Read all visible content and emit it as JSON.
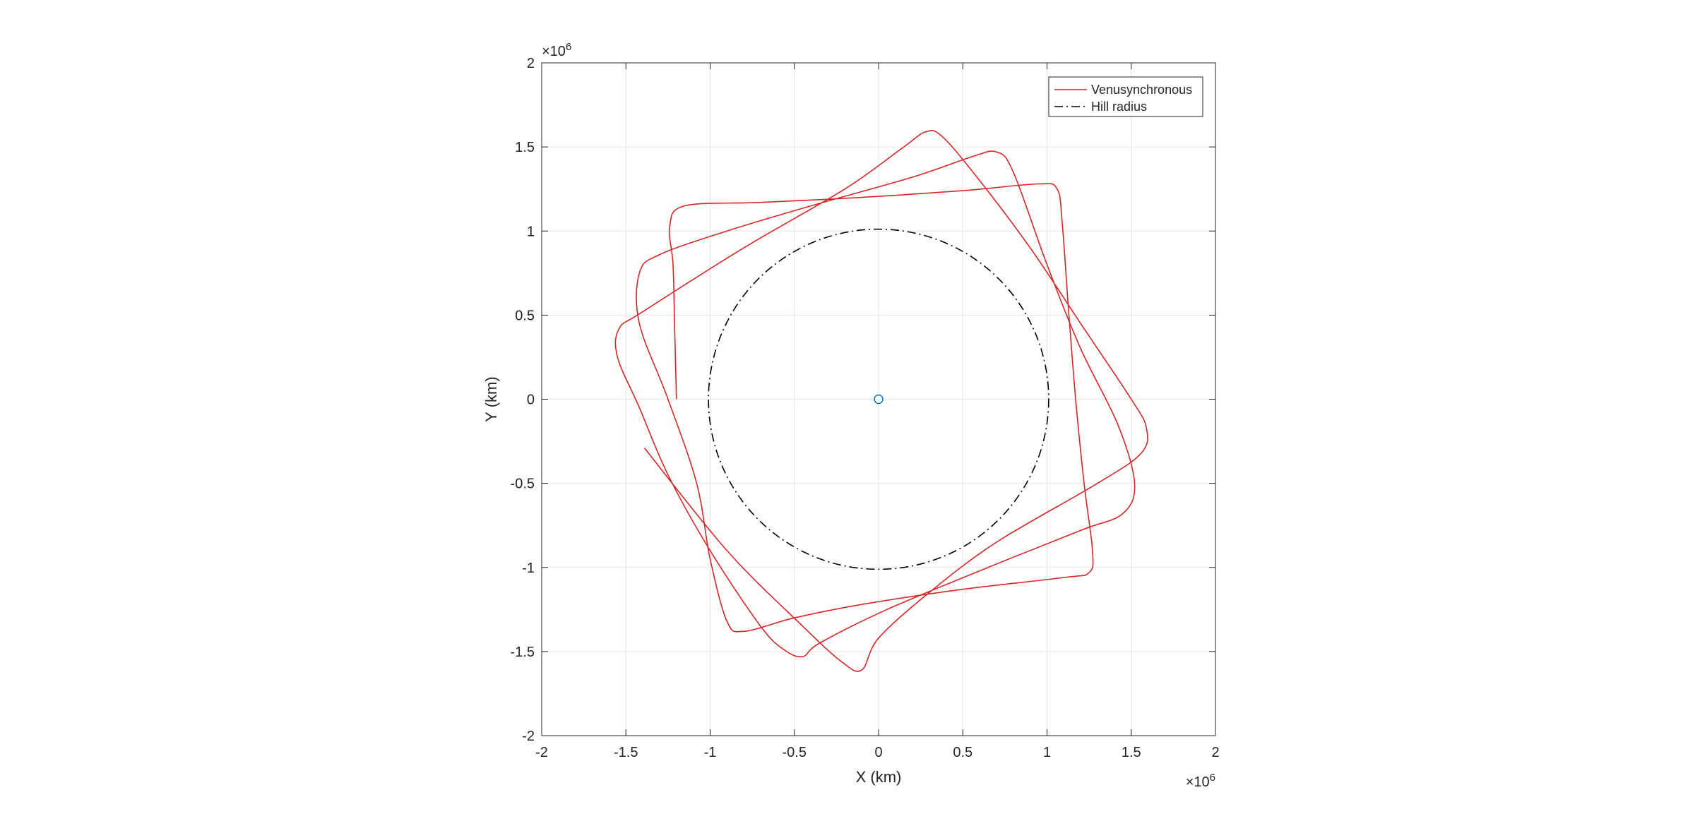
{
  "chart_data": {
    "type": "line",
    "xlabel": "X (km)",
    "ylabel": "Y (km)",
    "xlim": [
      -2000000,
      2000000
    ],
    "ylim": [
      -2000000,
      2000000
    ],
    "xticks": [
      -2000000,
      -1500000,
      -1000000,
      -500000,
      0,
      500000,
      1000000,
      1500000,
      2000000
    ],
    "yticks": [
      -2000000,
      -1500000,
      -1000000,
      -500000,
      0,
      500000,
      1000000,
      1500000,
      2000000
    ],
    "xtick_labels": [
      "-2",
      "-1.5",
      "-1",
      "-0.5",
      "0",
      "0.5",
      "1",
      "1.5",
      "2"
    ],
    "ytick_labels": [
      "-2",
      "-1.5",
      "-1",
      "-0.5",
      "0",
      "0.5",
      "1",
      "1.5",
      "2"
    ],
    "axis_exponent": {
      "base": "×10",
      "power": "6"
    },
    "grid": true,
    "legend_placement": "top-right",
    "colors": {
      "orbit": "#d62728",
      "hill": "#000000",
      "venus": "#0072bd",
      "grid": "#e5e5e5",
      "axis": "#262626"
    },
    "series": [
      {
        "name": "Venusynchronous",
        "style": "solid",
        "color": "#d62728",
        "points": [
          [
            -1200000,
            0
          ],
          [
            -1210000,
            400000
          ],
          [
            -1220000,
            800000
          ],
          [
            -1240000,
            1030000
          ],
          [
            -1150000,
            1150000
          ],
          [
            -700000,
            1170000
          ],
          [
            -100000,
            1200000
          ],
          [
            500000,
            1240000
          ],
          [
            950000,
            1280000
          ],
          [
            1060000,
            1250000
          ],
          [
            1090000,
            1050000
          ],
          [
            1130000,
            500000
          ],
          [
            1170000,
            0
          ],
          [
            1220000,
            -500000
          ],
          [
            1270000,
            -900000
          ],
          [
            1250000,
            -1030000
          ],
          [
            1100000,
            -1060000
          ],
          [
            500000,
            -1130000
          ],
          [
            -100000,
            -1220000
          ],
          [
            -500000,
            -1300000
          ],
          [
            -800000,
            -1380000
          ],
          [
            -900000,
            -1320000
          ],
          [
            -1000000,
            -950000
          ],
          [
            -1080000,
            -500000
          ],
          [
            -1250000,
            0
          ],
          [
            -1420000,
            450000
          ],
          [
            -1420000,
            750000
          ],
          [
            -1300000,
            860000
          ],
          [
            -900000,
            1000000
          ],
          [
            -400000,
            1150000
          ],
          [
            200000,
            1320000
          ],
          [
            550000,
            1440000
          ],
          [
            700000,
            1470000
          ],
          [
            800000,
            1350000
          ],
          [
            1000000,
            800000
          ],
          [
            1200000,
            300000
          ],
          [
            1420000,
            -150000
          ],
          [
            1520000,
            -500000
          ],
          [
            1450000,
            -680000
          ],
          [
            1200000,
            -780000
          ],
          [
            650000,
            -1000000
          ],
          [
            50000,
            -1250000
          ],
          [
            -350000,
            -1450000
          ],
          [
            -450000,
            -1530000
          ],
          [
            -560000,
            -1490000
          ],
          [
            -700000,
            -1350000
          ],
          [
            -1000000,
            -900000
          ],
          [
            -1250000,
            -450000
          ],
          [
            -1420000,
            -50000
          ],
          [
            -1550000,
            250000
          ],
          [
            -1540000,
            420000
          ],
          [
            -1400000,
            520000
          ],
          [
            -800000,
            900000
          ],
          [
            -200000,
            1250000
          ],
          [
            150000,
            1500000
          ],
          [
            280000,
            1590000
          ],
          [
            380000,
            1560000
          ],
          [
            600000,
            1300000
          ],
          [
            900000,
            900000
          ],
          [
            1200000,
            450000
          ],
          [
            1500000,
            0
          ],
          [
            1590000,
            -170000
          ],
          [
            1560000,
            -320000
          ],
          [
            1300000,
            -500000
          ],
          [
            700000,
            -850000
          ],
          [
            300000,
            -1150000
          ],
          [
            0,
            -1420000
          ],
          [
            -100000,
            -1610000
          ],
          [
            -220000,
            -1560000
          ],
          [
            -450000,
            -1350000
          ],
          [
            -900000,
            -900000
          ],
          [
            -1390000,
            -290000
          ]
        ]
      },
      {
        "name": "Hill radius",
        "style": "dashdot",
        "color": "#000000",
        "radius": 1010000
      }
    ],
    "markers": [
      {
        "name": "Venus",
        "x": 0,
        "y": 0,
        "shape": "circle",
        "color": "#0072bd"
      }
    ]
  }
}
